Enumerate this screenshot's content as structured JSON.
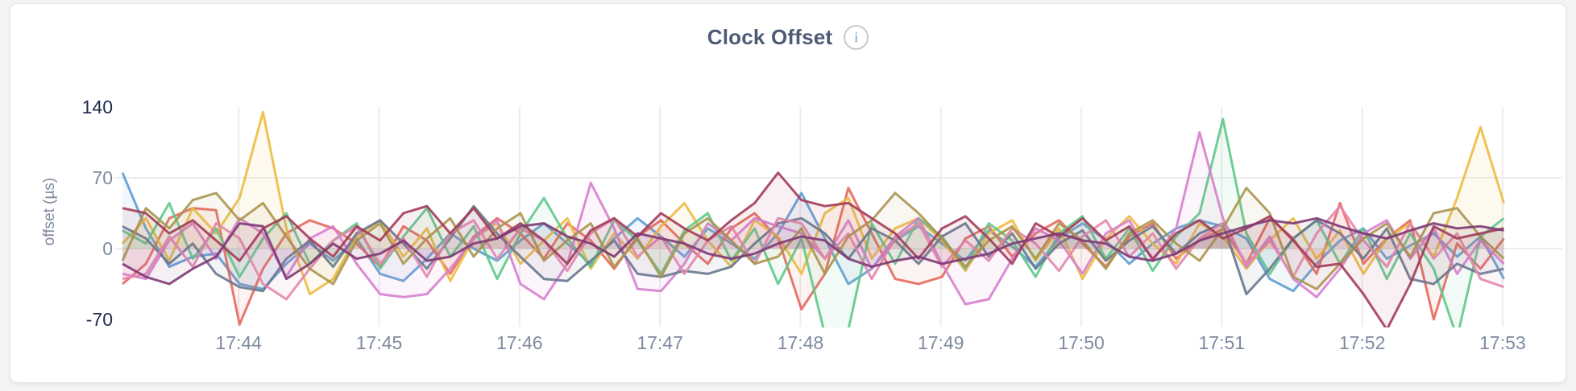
{
  "card": {
    "title": "Clock Offset",
    "info_glyph": "i"
  },
  "chart_data": {
    "type": "line",
    "title": "Clock Offset",
    "xlabel": "",
    "ylabel": "offset (µs)",
    "ylim": [
      -70,
      140
    ],
    "y_ticks": [
      140,
      70,
      0,
      -70
    ],
    "y_gridlines": [
      70,
      0
    ],
    "x_ticks": [
      "17:44",
      "17:45",
      "17:46",
      "17:47",
      "17:48",
      "17:49",
      "17:50",
      "17:51",
      "17:52",
      "17:53"
    ],
    "x_start_time": "17:43:10",
    "x_step_seconds": 10,
    "grid_on": true,
    "legend": "none",
    "colors": {
      "grid": "#ececec",
      "tick_gray": "#7f8aa0",
      "tick_dark": "#202c4e"
    },
    "series": [
      {
        "name": "series-1",
        "color": "#5e9cd3",
        "values": [
          75,
          20,
          -18,
          -8,
          -5,
          -35,
          -40,
          -15,
          5,
          -12,
          10,
          -25,
          -32,
          -10,
          15,
          0,
          -12,
          8,
          25,
          5,
          -15,
          10,
          30,
          12,
          -8,
          20,
          5,
          -10,
          15,
          55,
          10,
          -35,
          -20,
          8,
          22,
          5,
          -12,
          18,
          2,
          -18,
          10,
          25,
          8,
          -15,
          5,
          20,
          28,
          22,
          10,
          -30,
          -42,
          -15,
          8,
          20,
          -10,
          3,
          15,
          -8,
          12,
          -30
        ]
      },
      {
        "name": "series-2",
        "color": "#e5685c",
        "values": [
          -35,
          -15,
          30,
          40,
          38,
          -75,
          -20,
          15,
          28,
          20,
          5,
          -18,
          22,
          8,
          -25,
          12,
          30,
          15,
          -10,
          25,
          8,
          -20,
          12,
          28,
          5,
          -15,
          20,
          35,
          10,
          -60,
          -25,
          60,
          15,
          -30,
          -35,
          -28,
          10,
          22,
          -8,
          15,
          28,
          5,
          -18,
          12,
          25,
          -10,
          8,
          20,
          -15,
          30,
          10,
          -25,
          45,
          -15,
          10,
          28,
          -70,
          5,
          -20,
          10
        ]
      },
      {
        "name": "series-3",
        "color": "#ecbb42",
        "values": [
          5,
          30,
          -12,
          40,
          15,
          50,
          135,
          20,
          -45,
          -30,
          12,
          28,
          -8,
          20,
          -32,
          10,
          25,
          -15,
          8,
          30,
          -20,
          15,
          -10,
          22,
          45,
          8,
          -18,
          28,
          12,
          -25,
          35,
          50,
          -10,
          20,
          30,
          8,
          -22,
          15,
          28,
          -12,
          20,
          -30,
          10,
          32,
          5,
          -15,
          25,
          12,
          -20,
          8,
          30,
          -10,
          18,
          -25,
          10,
          25,
          -8,
          50,
          120,
          45
        ]
      },
      {
        "name": "series-4",
        "color": "#60c88b",
        "values": [
          18,
          5,
          45,
          -10,
          20,
          -28,
          10,
          35,
          -15,
          8,
          25,
          -20,
          12,
          40,
          -8,
          22,
          -30,
          15,
          50,
          10,
          -18,
          28,
          8,
          -25,
          18,
          35,
          -12,
          20,
          -35,
          10,
          -85,
          -80,
          25,
          -15,
          30,
          12,
          -20,
          25,
          8,
          -28,
          15,
          32,
          -10,
          20,
          -22,
          12,
          35,
          128,
          15,
          -25,
          10,
          28,
          -15,
          20,
          -30,
          15,
          -20,
          -88,
          12,
          30
        ]
      },
      {
        "name": "series-5",
        "color": "#d680cf",
        "values": [
          -25,
          -30,
          8,
          25,
          -10,
          30,
          15,
          -28,
          10,
          22,
          -15,
          -45,
          -48,
          -45,
          -20,
          10,
          28,
          -35,
          -50,
          -15,
          65,
          20,
          -40,
          -42,
          -15,
          25,
          8,
          30,
          22,
          15,
          -10,
          28,
          -20,
          12,
          30,
          -15,
          -55,
          -50,
          -10,
          20,
          8,
          -25,
          15,
          28,
          -12,
          20,
          115,
          30,
          -18,
          12,
          -30,
          -48,
          -20,
          15,
          28,
          -10,
          20,
          -25,
          8,
          -15
        ]
      },
      {
        "name": "series-6",
        "color": "#68788f",
        "values": [
          22,
          10,
          -15,
          5,
          -25,
          -38,
          -42,
          -10,
          8,
          -18,
          15,
          28,
          5,
          -20,
          10,
          42,
          15,
          -8,
          -30,
          -32,
          -12,
          8,
          -25,
          -28,
          -22,
          -25,
          -18,
          5,
          25,
          30,
          15,
          -10,
          20,
          8,
          -15,
          12,
          25,
          -8,
          15,
          -20,
          5,
          18,
          -12,
          8,
          22,
          -5,
          15,
          25,
          -45,
          -20,
          10,
          28,
          15,
          -10,
          20,
          -30,
          -35,
          -15,
          -25,
          -20
        ]
      },
      {
        "name": "series-7",
        "color": "#e287ae",
        "values": [
          -30,
          -25,
          12,
          -18,
          25,
          10,
          -35,
          -50,
          -20,
          8,
          22,
          -15,
          10,
          -28,
          15,
          28,
          -10,
          20,
          8,
          -22,
          15,
          30,
          -8,
          12,
          -25,
          8,
          22,
          -15,
          30,
          25,
          -10,
          15,
          -30,
          10,
          25,
          -18,
          8,
          -12,
          20,
          5,
          -22,
          12,
          28,
          -8,
          15,
          -20,
          10,
          25,
          -15,
          8,
          -28,
          15,
          42,
          8,
          -18,
          25,
          -10,
          15,
          -30,
          -38
        ]
      },
      {
        "name": "series-8",
        "color": "#aa964f",
        "values": [
          -12,
          40,
          20,
          48,
          55,
          28,
          45,
          12,
          -20,
          -35,
          8,
          25,
          -15,
          10,
          30,
          -8,
          20,
          35,
          -12,
          8,
          25,
          -18,
          10,
          -28,
          15,
          30,
          8,
          -15,
          -8,
          20,
          -25,
          12,
          28,
          55,
          35,
          10,
          -18,
          8,
          22,
          -10,
          25,
          8,
          -20,
          15,
          28,
          5,
          -12,
          20,
          60,
          35,
          -28,
          -40,
          -15,
          10,
          25,
          -8,
          35,
          40,
          12,
          -10
        ]
      },
      {
        "name": "series-9",
        "color": "#a23c59",
        "values": [
          40,
          35,
          15,
          28,
          8,
          -12,
          20,
          32,
          10,
          -8,
          22,
          8,
          35,
          42,
          15,
          40,
          10,
          25,
          8,
          -15,
          18,
          30,
          12,
          35,
          20,
          8,
          28,
          45,
          75,
          48,
          42,
          45,
          30,
          15,
          -10,
          20,
          32,
          10,
          -15,
          25,
          12,
          30,
          8,
          22,
          -10,
          15,
          28,
          10,
          20,
          32,
          8,
          -18,
          -15,
          -45,
          -80,
          -35,
          22,
          10,
          15,
          20
        ]
      },
      {
        "name": "series-10",
        "color": "#7e3a74",
        "values": [
          -15,
          -28,
          -35,
          -20,
          -8,
          25,
          22,
          -30,
          -15,
          5,
          -10,
          -5,
          8,
          -12,
          -8,
          5,
          10,
          22,
          25,
          12,
          5,
          -8,
          15,
          10,
          5,
          -5,
          -10,
          -5,
          5,
          12,
          8,
          -10,
          -18,
          -12,
          -8,
          -15,
          -10,
          -5,
          5,
          10,
          15,
          8,
          5,
          -8,
          -12,
          -5,
          8,
          15,
          22,
          28,
          25,
          30,
          22,
          15,
          10,
          18,
          25,
          20,
          22,
          18
        ]
      }
    ]
  }
}
